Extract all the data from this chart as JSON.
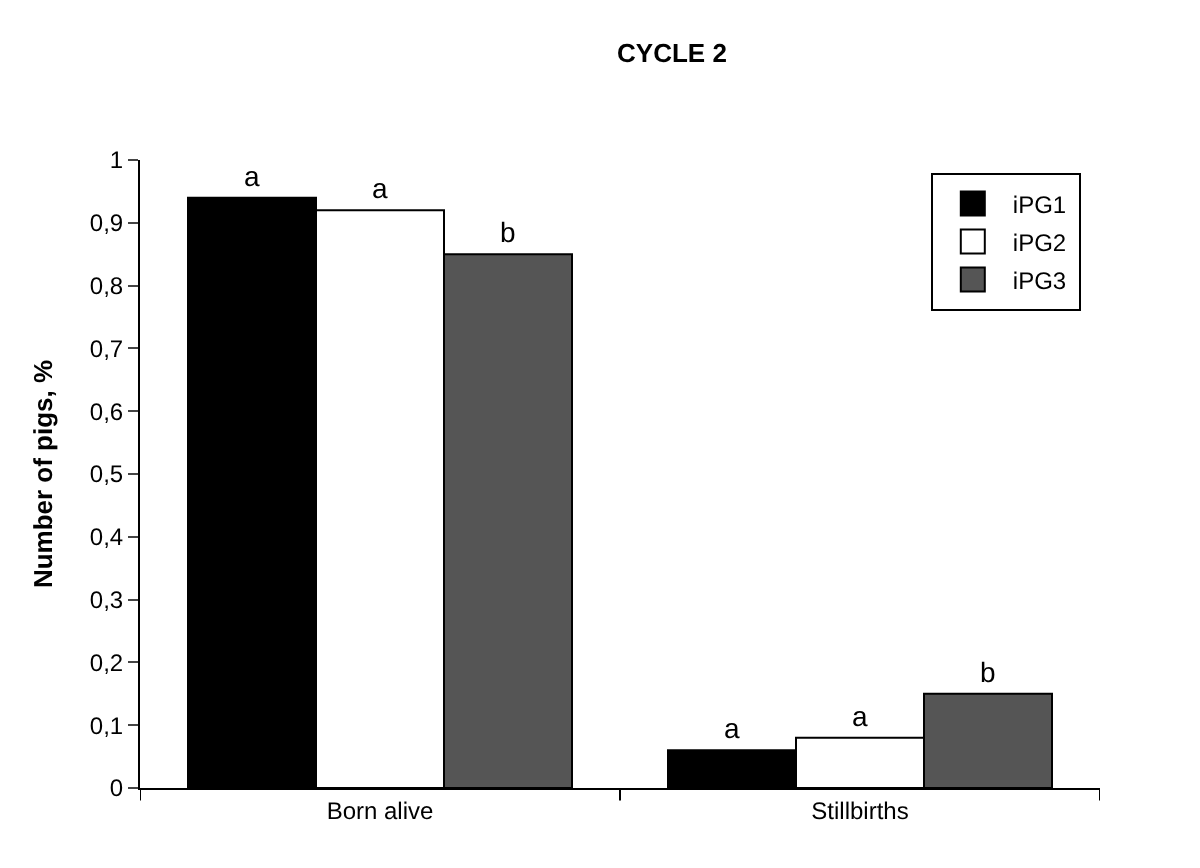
{
  "chart_data": {
    "type": "bar",
    "title": "CYCLE 2",
    "ylabel": "Number of pigs, %",
    "categories": [
      "Born alive",
      "Stillbirths"
    ],
    "series": [
      {
        "name": "iPG1",
        "color": "#000000",
        "values": [
          0.94,
          0.06
        ],
        "value_labels": [
          "a",
          "a"
        ]
      },
      {
        "name": "iPG2",
        "color": "#ffffff",
        "values": [
          0.92,
          0.08
        ],
        "value_labels": [
          "a",
          "a"
        ]
      },
      {
        "name": "iPG3",
        "color": "#555555",
        "values": [
          0.85,
          0.15
        ],
        "value_labels": [
          "b",
          "b"
        ]
      }
    ],
    "ylim": [
      0,
      1
    ],
    "yticks": [
      0,
      {
        "value": 0.1,
        "label": "0,1"
      },
      {
        "value": 0.2,
        "label": "0,2"
      },
      {
        "value": 0.3,
        "label": "0,3"
      },
      {
        "value": 0.4,
        "label": "0,4"
      },
      {
        "value": 0.5,
        "label": "0,5"
      },
      {
        "value": 0.6,
        "label": "0,6"
      },
      {
        "value": 0.7,
        "label": "0,7"
      },
      {
        "value": 0.8,
        "label": "0,8"
      },
      {
        "value": 0.9,
        "label": "0,9"
      },
      1
    ],
    "grid": false,
    "legend": "top right"
  }
}
